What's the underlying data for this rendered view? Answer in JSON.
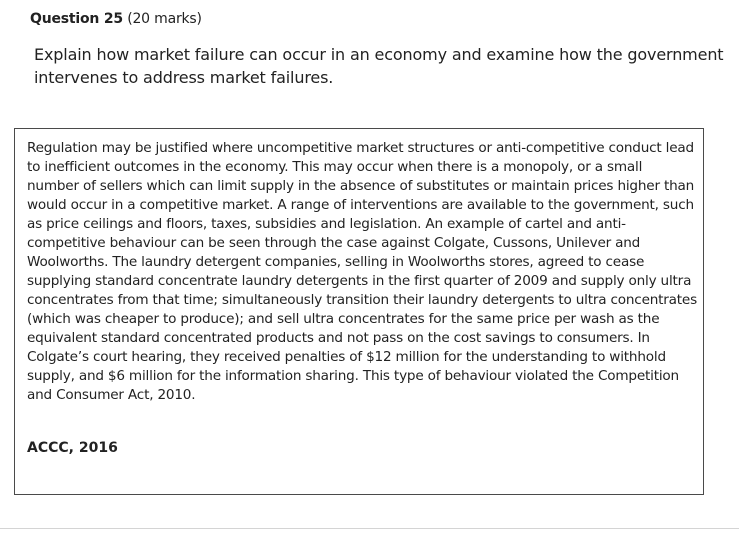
{
  "question": {
    "number_label": "Question 25",
    "marks_label": "(20 marks)",
    "prompt": "Explain how market failure can occur in an economy and examine how the government intervenes to address market failures."
  },
  "answer": {
    "body": "Regulation may be justified where uncompetitive market structures or anti-competitive conduct lead to inefficient outcomes in the economy. This may occur when there is a monopoly, or a small number of sellers which can limit supply in the absence of substitutes or maintain prices higher than would occur in a competitive market. A range of interventions are available to the government, such as price ceilings and floors, taxes, subsidies and legislation. An example of cartel and anti-competitive behaviour can be seen through the case against Colgate, Cussons, Unilever and Woolworths. The laundry detergent companies, selling in Woolworths stores, agreed to cease supplying standard concentrate laundry detergents in the first quarter of 2009 and supply only ultra concentrates from that time; simultaneously transition their laundry detergents to ultra concentrates (which was cheaper to produce); and sell ultra concentrates for the same price per wash as the equivalent standard concentrated products and not pass on the cost savings to consumers. In Colgate’s court hearing, they received penalties of $12 million for the understanding to withhold supply, and $6 million for the information sharing. This type of behaviour violated the Competition and Consumer Act, 2010.",
    "source": "ACCC, 2016"
  }
}
